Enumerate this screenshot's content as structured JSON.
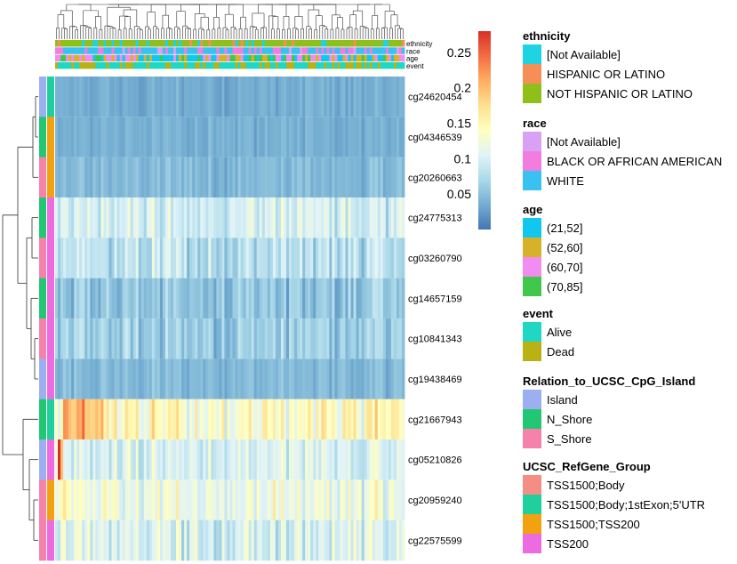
{
  "chart_data": {
    "type": "heatmap",
    "title": "",
    "rows": [
      "cg24620454",
      "cg04346539",
      "cg20260663",
      "cg24775313",
      "cg03260790",
      "cg14657159",
      "cg10841343",
      "cg19438469",
      "cg21667943",
      "cg05210826",
      "cg20959240",
      "cg22575599"
    ],
    "row_means": [
      0.035,
      0.038,
      0.045,
      0.095,
      0.08,
      0.055,
      0.06,
      0.045,
      0.14,
      0.1,
      0.12,
      0.1
    ],
    "row_spread": [
      0.012,
      0.012,
      0.015,
      0.035,
      0.035,
      0.03,
      0.03,
      0.015,
      0.045,
      0.035,
      0.04,
      0.04
    ],
    "n_samples": 130,
    "color_scale": {
      "min": 0.0,
      "max": 0.28,
      "ticks": [
        "0.25",
        "0.2",
        "0.15",
        "0.1",
        "0.05"
      ],
      "tick_values": [
        0.25,
        0.2,
        0.15,
        0.1,
        0.05
      ],
      "colors": [
        "#4575b4",
        "#74add1",
        "#abd9e9",
        "#e0f3f8",
        "#ffffbf",
        "#fee090",
        "#fdae61",
        "#f46d43",
        "#d73027"
      ]
    },
    "column_annotation_labels": [
      "ethnicity",
      "race",
      "age",
      "event"
    ],
    "row_annotations": {
      "Relation_to_UCSC_CpG_Island": [
        "Island",
        "N_Shore",
        "S_Shore",
        "N_Shore",
        "S_Shore",
        "N_Shore",
        "S_Shore",
        "Island",
        "N_Shore",
        "Island",
        "S_Shore",
        "S_Shore"
      ],
      "UCSC_RefGene_Group": [
        "TSS1500;Body;1stExon;5'UTR",
        "TSS1500;TSS200",
        "TSS1500;TSS200",
        "TSS200",
        "TSS200",
        "TSS200",
        "TSS200",
        "TSS200",
        "TSS1500;Body;1stExon;5'UTR",
        "TSS200",
        "TSS1500;TSS200",
        "TSS200"
      ]
    },
    "legends": [
      {
        "title": "ethnicity",
        "items": [
          {
            "label": "[Not Available]",
            "color": "#1ed4e3"
          },
          {
            "label": "HISPANIC OR LATINO",
            "color": "#f58f57"
          },
          {
            "label": "NOT HISPANIC OR LATINO",
            "color": "#8fc01a"
          }
        ]
      },
      {
        "title": "race",
        "items": [
          {
            "label": "[Not Available]",
            "color": "#d9a0f5"
          },
          {
            "label": "BLACK OR AFRICAN AMERICAN",
            "color": "#f37ddf"
          },
          {
            "label": "WHITE",
            "color": "#39c1f2"
          }
        ]
      },
      {
        "title": "age",
        "items": [
          {
            "label": "(21,52]",
            "color": "#12c7ee"
          },
          {
            "label": "(52,60]",
            "color": "#d6b22b"
          },
          {
            "label": "(60,70]",
            "color": "#f38cf0"
          },
          {
            "label": "(70,85]",
            "color": "#41c84c"
          }
        ]
      },
      {
        "title": "event",
        "items": [
          {
            "label": "Alive",
            "color": "#1fd7c4"
          },
          {
            "label": "Dead",
            "color": "#b8b214"
          }
        ]
      },
      {
        "title": "Relation_to_UCSC_CpG_Island",
        "items": [
          {
            "label": "Island",
            "color": "#9caff0"
          },
          {
            "label": "N_Shore",
            "color": "#22c774"
          },
          {
            "label": "S_Shore",
            "color": "#f582ab"
          }
        ]
      },
      {
        "title": "UCSC_RefGene_Group",
        "items": [
          {
            "label": "TSS1500;Body",
            "color": "#f48d83"
          },
          {
            "label": "TSS1500;Body;1stExon;5'UTR",
            "color": "#1fd09d"
          },
          {
            "label": "TSS1500;TSS200",
            "color": "#f2a111"
          },
          {
            "label": "TSS200",
            "color": "#ee6ae0"
          }
        ]
      }
    ]
  }
}
